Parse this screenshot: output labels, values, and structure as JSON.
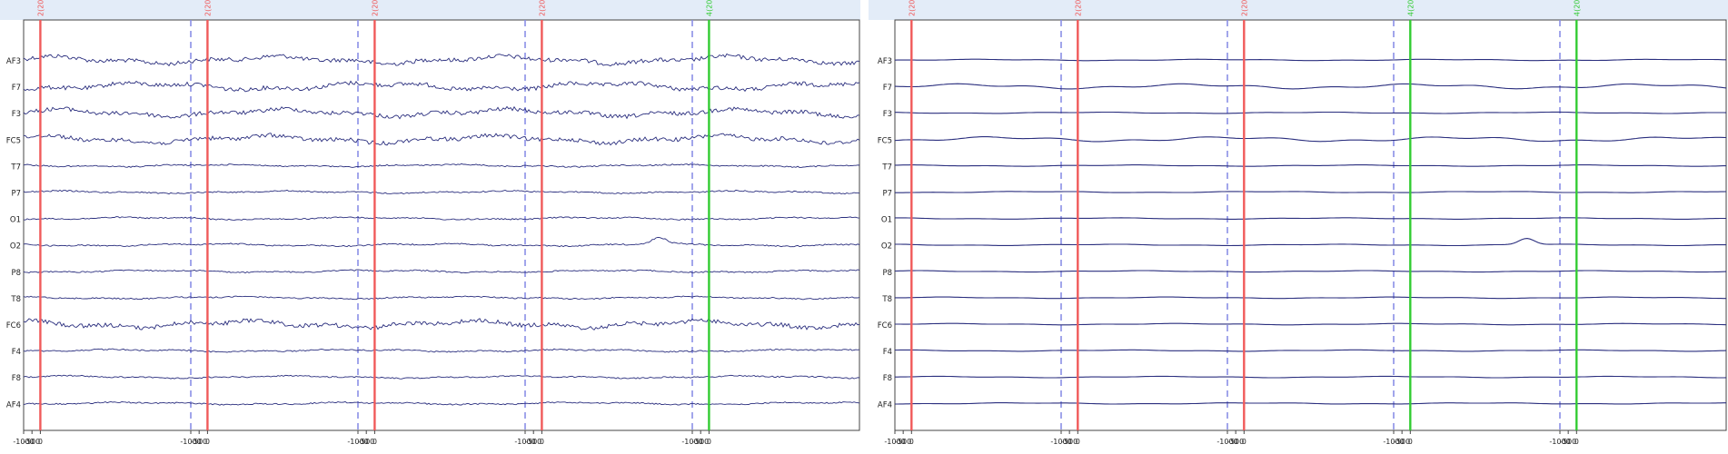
{
  "channels": [
    "AF3",
    "F7",
    "F3",
    "FC5",
    "T7",
    "P7",
    "O1",
    "O2",
    "P8",
    "T8",
    "FC6",
    "F4",
    "F8",
    "AF4"
  ],
  "axis_ticks": [
    "-1000",
    "-500",
    "0",
    "-1000",
    "-500",
    "0",
    "-1000",
    "-500",
    "0",
    "-1000",
    "-500",
    "0",
    "-1000",
    "-500",
    "0"
  ],
  "colors": {
    "header": "#e3ecf8",
    "plot_border": "#444444",
    "trace": "#2a2e7e",
    "marker_red": "#f05a5a",
    "marker_green": "#33cc33",
    "epoch_boundary": "#8a8fe6"
  },
  "panels": [
    {
      "name": "raw-eeg-panel",
      "noise": "high",
      "markers": [
        {
          "label": "2(20)",
          "color": "red"
        },
        {
          "label": "2(20)",
          "color": "red"
        },
        {
          "label": "2(20)",
          "color": "red"
        },
        {
          "label": "2(20)",
          "color": "red"
        },
        {
          "label": "4(20)",
          "color": "green"
        }
      ]
    },
    {
      "name": "filtered-eeg-panel",
      "noise": "low",
      "markers": [
        {
          "label": "2(20)",
          "color": "red"
        },
        {
          "label": "2(20)",
          "color": "red"
        },
        {
          "label": "2(20)",
          "color": "red"
        },
        {
          "label": "4(20)",
          "color": "green"
        },
        {
          "label": "4(20)",
          "color": "green"
        }
      ]
    }
  ]
}
